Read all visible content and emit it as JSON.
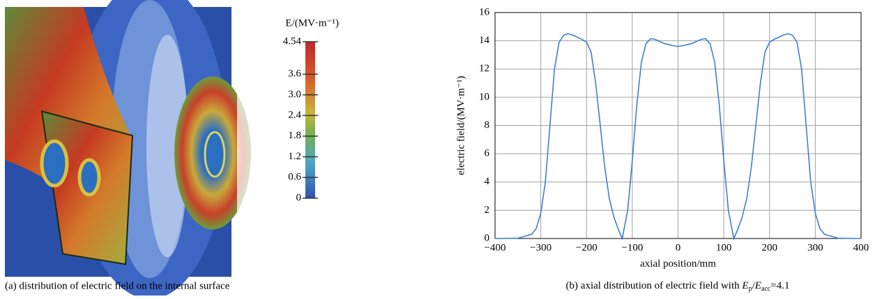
{
  "chart_data": [
    {
      "type": "image",
      "caption": "(a) distribution of electric field on the internal surface",
      "colorbar_label": "E/(MV·m⁻¹)",
      "clim": [
        0,
        4.54
      ],
      "cticks": [
        4.54,
        3.6,
        {
          "value": 3,
          "label": "3.0"
        },
        2.4,
        1.8,
        1.2,
        0.6,
        0
      ]
    },
    {
      "type": "line",
      "caption": {
        "lead": "(b) axial distribution of electric field with ",
        "sym1": "E",
        "sub1": "p",
        "sep": "/",
        "sym2": "E",
        "sub2": "acc",
        "tail": "=4.1"
      },
      "xlabel": "axial position/mm",
      "ylabel": "electric field/(MV·m⁻¹)",
      "color": "#3b7fd4",
      "grid": true,
      "xlim": [
        -400,
        400
      ],
      "ylim": [
        0,
        16
      ],
      "xticks": [
        {
          "value": -400,
          "label": "−400"
        },
        {
          "value": -300,
          "label": "−300"
        },
        {
          "value": -200,
          "label": "−200"
        },
        {
          "value": -100,
          "label": "−100"
        },
        0,
        100,
        200,
        300,
        400
      ],
      "yticks": [
        0,
        2,
        4,
        6,
        8,
        10,
        12,
        14,
        16
      ],
      "x": [
        -400,
        -350,
        -320,
        -310,
        -300,
        -290,
        -280,
        -270,
        -260,
        -250,
        -240,
        -230,
        -210,
        -200,
        -190,
        -180,
        -170,
        -160,
        -150,
        -140,
        -130,
        -122,
        -110,
        -100,
        -90,
        -80,
        -70,
        -60,
        -50,
        -30,
        -10,
        0,
        10,
        30,
        50,
        60,
        70,
        80,
        90,
        100,
        110,
        122,
        130,
        140,
        150,
        160,
        170,
        180,
        190,
        200,
        210,
        230,
        240,
        250,
        260,
        270,
        280,
        290,
        300,
        310,
        320,
        350,
        400
      ],
      "values": [
        0,
        0.02,
        0.3,
        0.7,
        1.8,
        4,
        8,
        12,
        13.9,
        14.4,
        14.5,
        14.4,
        14.1,
        13.9,
        13.2,
        11,
        8,
        5,
        2.8,
        1.5,
        0.6,
        0,
        2,
        5.5,
        9.5,
        12.5,
        13.8,
        14.15,
        14.1,
        13.8,
        13.65,
        13.6,
        13.65,
        13.8,
        14.1,
        14.15,
        13.8,
        12.5,
        9.5,
        5.5,
        2,
        0,
        0.6,
        1.5,
        2.8,
        5,
        8,
        11,
        13.2,
        13.9,
        14.1,
        14.4,
        14.5,
        14.4,
        13.9,
        12,
        8,
        4,
        1.8,
        0.7,
        0.3,
        0.02,
        0
      ]
    }
  ]
}
